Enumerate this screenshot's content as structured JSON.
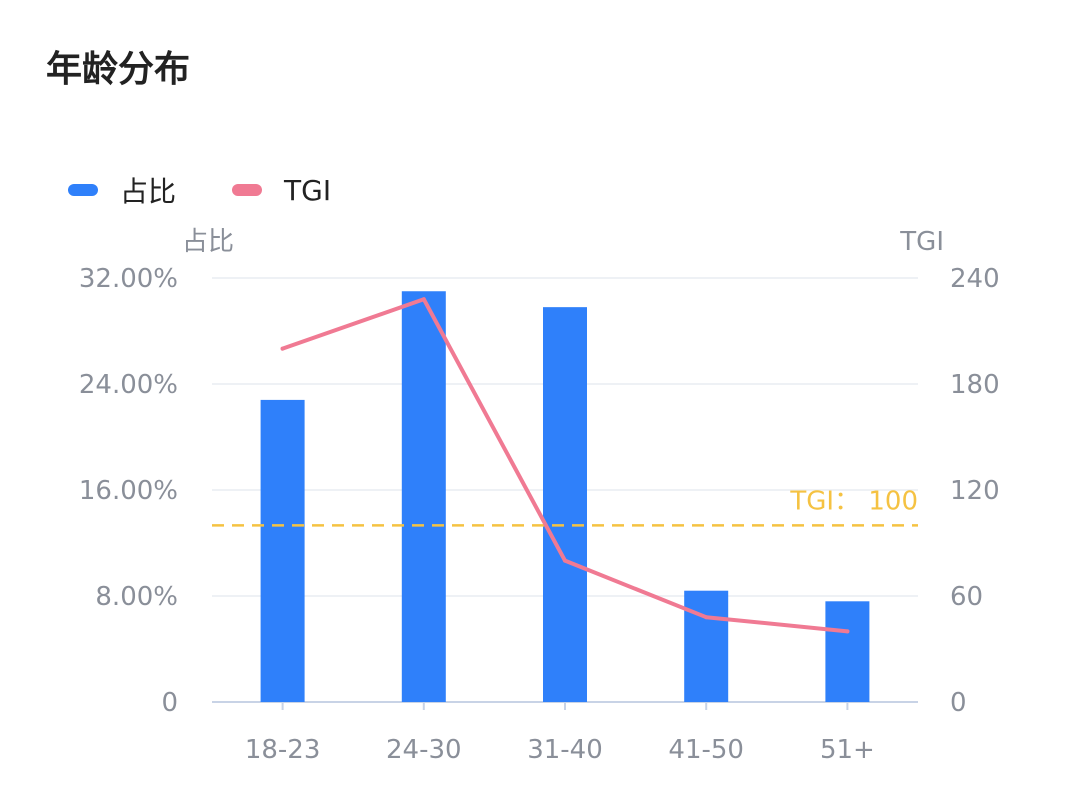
{
  "title": "年龄分布",
  "colors": {
    "bar": "#2f80fa",
    "line": "#f07a93",
    "reference": "#f5c242",
    "grid": "#eef1f5",
    "axis": "#c8d3e6",
    "text": "#8a8f99"
  },
  "legend": [
    {
      "label": "占比",
      "color": "#2f80fa"
    },
    {
      "label": "TGI",
      "color": "#f07a93"
    }
  ],
  "chart_data": {
    "type": "bar",
    "categories": [
      "18-23",
      "24-30",
      "31-40",
      "41-50",
      "51+"
    ],
    "series": [
      {
        "name": "占比",
        "type": "bar",
        "axis": "left",
        "values": [
          22.8,
          31.0,
          29.8,
          8.4,
          7.6
        ]
      },
      {
        "name": "TGI",
        "type": "line",
        "axis": "right",
        "values": [
          200,
          228,
          80,
          48,
          40
        ]
      }
    ],
    "y_left": {
      "label": "占比",
      "ticks": [
        "0",
        "8.00%",
        "16.00%",
        "24.00%",
        "32.00%"
      ],
      "range": [
        0,
        32
      ]
    },
    "y_right": {
      "label": "TGI",
      "ticks": [
        "0",
        "60",
        "120",
        "180",
        "240"
      ],
      "range": [
        0,
        240
      ]
    },
    "reference_line": {
      "axis": "right",
      "value": 100,
      "label": "TGI： 100"
    },
    "grid": true,
    "legend_position": "top-left"
  }
}
